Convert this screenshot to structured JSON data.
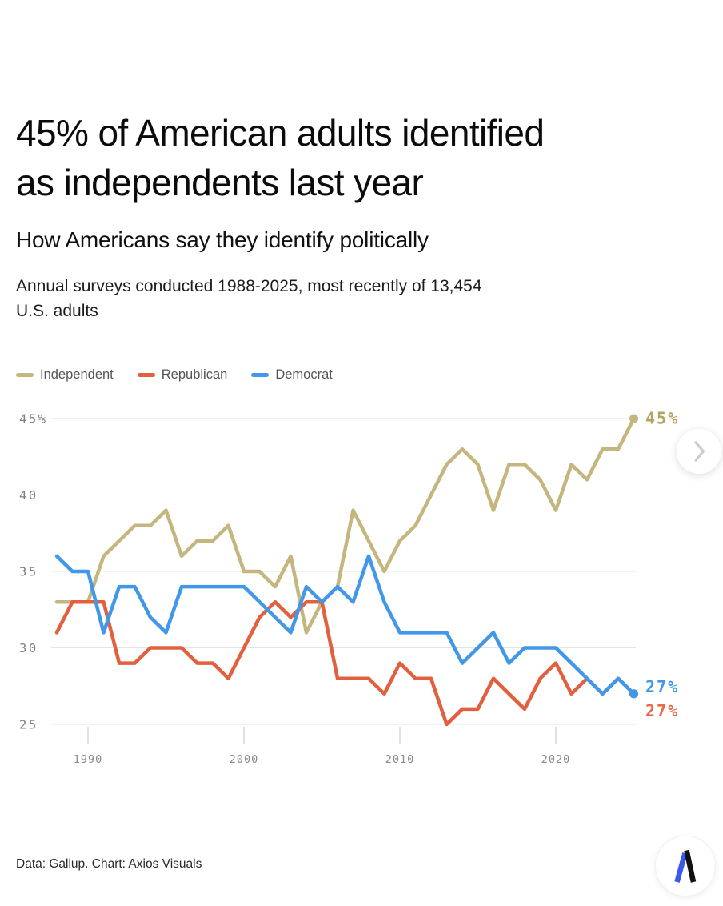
{
  "title": {
    "lines": [
      "45% of American adults identified",
      "as independents last year"
    ]
  },
  "subtitle": "How Americans say they identify politically",
  "description": {
    "lines": [
      "Annual surveys conducted 1988-2025, most recently of 13,454",
      "U.S. adults"
    ]
  },
  "footer": {
    "credit": "Data: Gallup. Chart: Axios Visuals"
  },
  "carousel": {
    "next_label": "next"
  },
  "logo": {
    "name": "Axios"
  },
  "chart_data": {
    "type": "line",
    "x_years": [
      1988,
      1989,
      1990,
      1991,
      1992,
      1993,
      1994,
      1995,
      1996,
      1997,
      1998,
      1999,
      2000,
      2001,
      2002,
      2003,
      2004,
      2005,
      2006,
      2007,
      2008,
      2009,
      2010,
      2011,
      2012,
      2013,
      2014,
      2015,
      2016,
      2017,
      2018,
      2019,
      2020,
      2021,
      2022,
      2023,
      2024,
      2025
    ],
    "series": [
      {
        "name": "Independent",
        "color": "#c4b67e",
        "label_color": "#b3a45f",
        "end_label": "45%",
        "values": [
          33,
          33,
          33,
          36,
          37,
          38,
          38,
          39,
          36,
          37,
          37,
          38,
          35,
          35,
          34,
          36,
          31,
          33,
          34,
          39,
          37,
          35,
          37,
          38,
          40,
          42,
          43,
          42,
          39,
          42,
          42,
          41,
          39,
          42,
          41,
          43,
          43,
          45
        ]
      },
      {
        "name": "Republican",
        "color": "#e2603e",
        "label_color": "#e96a49",
        "end_label": "27%",
        "values": [
          31,
          33,
          33,
          33,
          29,
          29,
          30,
          30,
          30,
          29,
          29,
          28,
          30,
          32,
          33,
          32,
          33,
          33,
          28,
          28,
          28,
          27,
          29,
          28,
          28,
          25,
          26,
          26,
          28,
          27,
          26,
          28,
          29,
          27,
          28,
          27,
          28,
          27
        ]
      },
      {
        "name": "Democrat",
        "color": "#4198e9",
        "label_color": "#4198e9",
        "end_label": "27%",
        "values": [
          36,
          35,
          35,
          31,
          34,
          34,
          32,
          31,
          34,
          34,
          34,
          34,
          34,
          33,
          32,
          31,
          34,
          33,
          34,
          33,
          36,
          33,
          31,
          31,
          31,
          31,
          29,
          30,
          31,
          29,
          30,
          30,
          30,
          29,
          28,
          27,
          28,
          27
        ]
      }
    ],
    "ylim": [
      25,
      45
    ],
    "yticks": [
      {
        "value": 45,
        "label": "45%"
      },
      {
        "value": 40,
        "label": "40"
      },
      {
        "value": 35,
        "label": "35"
      },
      {
        "value": 30,
        "label": "30"
      },
      {
        "value": 25,
        "label": "25"
      }
    ],
    "xticks": [
      {
        "value": 1990,
        "label": "1990"
      },
      {
        "value": 2000,
        "label": "2000"
      },
      {
        "value": 2010,
        "label": "2010"
      },
      {
        "value": 2020,
        "label": "2020"
      }
    ],
    "grid": "horizontal",
    "legend_position": "top-left"
  }
}
